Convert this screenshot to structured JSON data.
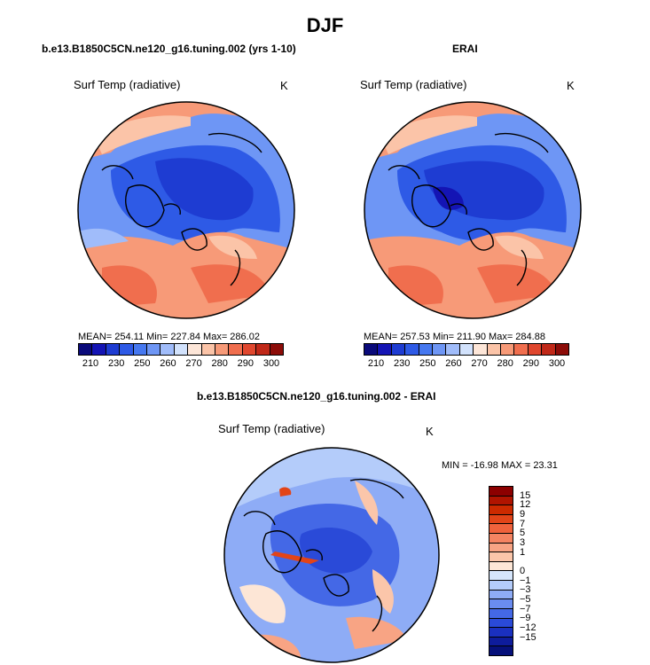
{
  "title": "DJF",
  "panels": [
    {
      "title": "b.e13.B1850C5CN.ne120_g16.tuning.002 (yrs 1-10)",
      "variable": "Surf Temp (radiative)",
      "unit": "K",
      "stats": "MEAN= 254.11  Min= 227.84  Max= 286.02"
    },
    {
      "title": "ERAI",
      "variable": "Surf Temp (radiative)",
      "unit": "K",
      "stats": "MEAN= 257.53  Min= 211.90  Max= 284.88"
    },
    {
      "title": "b.e13.B1850C5CN.ne120_g16.tuning.002 - ERAI",
      "variable": "Surf Temp (radiative)",
      "unit": "K",
      "stats": "MIN = -16.98 MAX =  23.31"
    }
  ],
  "abs_colorbar": {
    "colors": [
      "#0a0a7a",
      "#1414b4",
      "#1e3cd2",
      "#2e5ae6",
      "#4678f0",
      "#6e96f5",
      "#a0bcfa",
      "#d2e2fc",
      "#fde6d8",
      "#fbc4a8",
      "#f79a78",
      "#f06e4e",
      "#e0472e",
      "#c02818",
      "#8c0c08"
    ],
    "ticks": [
      "210",
      "230",
      "250",
      "260",
      "270",
      "280",
      "290",
      "300"
    ]
  },
  "diff_colorbar": {
    "colors": [
      "#8c0000",
      "#b01400",
      "#cc2a00",
      "#e24418",
      "#f0623c",
      "#f58462",
      "#f8a484",
      "#fbc6aa",
      "#fde6d6",
      "#d6e6fc",
      "#b4ccfa",
      "#8eacf6",
      "#6a8cf0",
      "#4468e6",
      "#2a4ad8",
      "#1a30c0",
      "#0e1c9c",
      "#06107a"
    ],
    "labels": [
      "15",
      "12",
      "9",
      "7",
      "5",
      "3",
      "1",
      "0",
      "−1",
      "−3",
      "−5",
      "−7",
      "−9",
      "−12",
      "−15"
    ]
  }
}
